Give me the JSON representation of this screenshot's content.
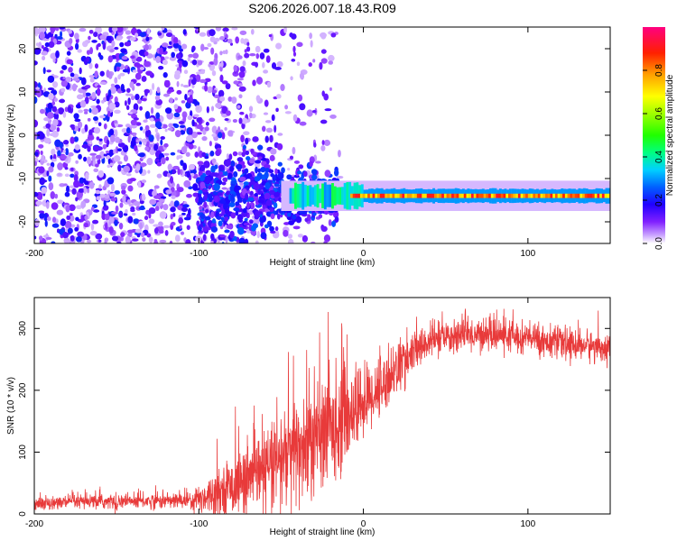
{
  "title": "S206.2026.007.18.43.R09",
  "chart_data": [
    {
      "type": "heatmap",
      "xlabel": "Height of straight line (km)",
      "ylabel": "Frequency (Hz)",
      "xlim": [
        -200,
        150
      ],
      "ylim": [
        -25,
        25
      ],
      "xticks": [
        -200,
        -100,
        0,
        100
      ],
      "yticks": [
        -20,
        -10,
        0,
        10,
        20
      ],
      "colorbar": {
        "label": "Normalized spectral amplitude",
        "range": [
          0,
          1
        ],
        "ticks": [
          "0.0",
          "0.2",
          "0.4",
          "0.6",
          "0.8"
        ],
        "colormap": [
          "#ffffff",
          "#a040ff",
          "#4000ff",
          "#0040ff",
          "#00c0ff",
          "#00ff80",
          "#40ff00",
          "#c0ff00",
          "#ffff00",
          "#ffa000",
          "#ff2000",
          "#ff0080"
        ]
      },
      "features": {
        "line_frequency_hz": -14,
        "line_from_km": -40,
        "line_to_km": 150,
        "noise_region_km": [
          -200,
          -20
        ]
      }
    },
    {
      "type": "line",
      "xlabel": "Height of straight line (km)",
      "ylabel": "SNR (10 * v/v)",
      "xlim": [
        -200,
        150
      ],
      "ylim": [
        0,
        350
      ],
      "xticks": [
        -200,
        -100,
        0,
        100
      ],
      "yticks": [
        0,
        100,
        200,
        300
      ],
      "color": "#e83a3a",
      "trend": {
        "x": [
          -200,
          -110,
          -100,
          -80,
          -60,
          -45,
          -30,
          -15,
          0,
          10,
          20,
          30,
          40,
          60,
          80,
          100,
          120,
          150
        ],
        "y": [
          18,
          22,
          25,
          45,
          70,
          95,
          120,
          150,
          180,
          205,
          235,
          260,
          280,
          290,
          290,
          285,
          275,
          270
        ]
      },
      "noise_amplitude": {
        "x": [
          -200,
          -110,
          -100,
          -60,
          -40,
          -15,
          0,
          20,
          40,
          150
        ],
        "y": [
          10,
          12,
          22,
          60,
          90,
          80,
          55,
          40,
          25,
          22
        ]
      }
    }
  ]
}
